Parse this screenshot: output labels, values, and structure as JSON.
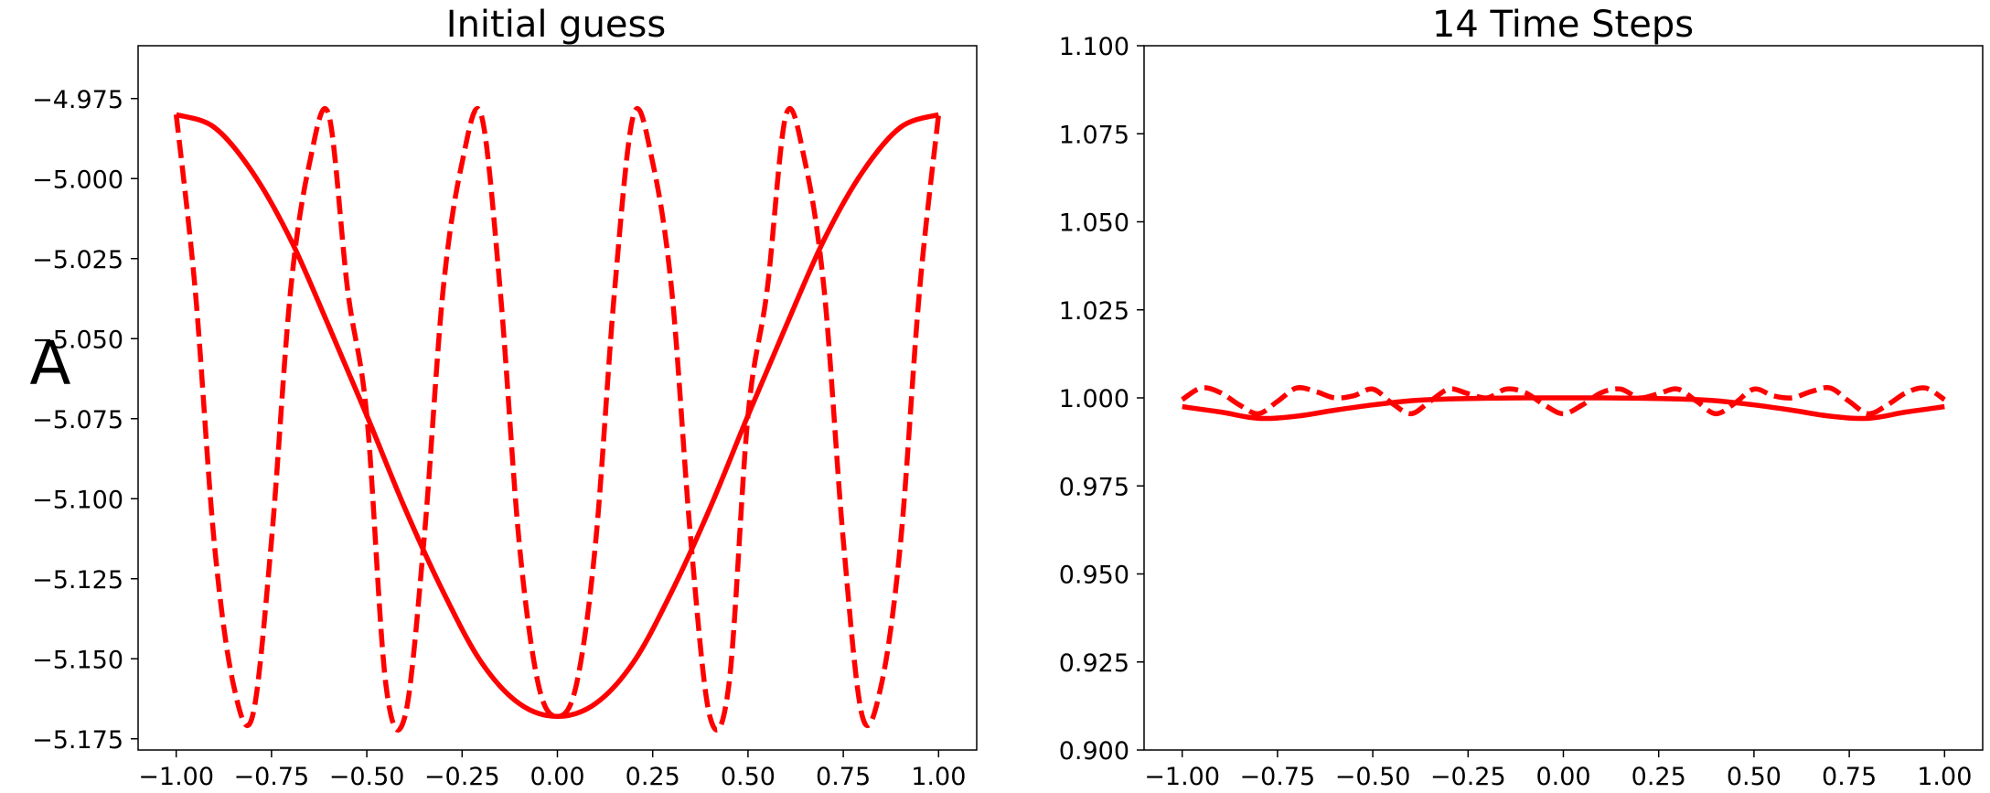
{
  "chart_data": [
    {
      "type": "line",
      "title": "Initial guess",
      "ylabel": "A",
      "xlabel": "",
      "xlim": [
        -1.1,
        1.1
      ],
      "ylim": [
        -5.1785,
        -4.9585
      ],
      "xticks": [
        -1.0,
        -0.75,
        -0.5,
        -0.25,
        0.0,
        0.25,
        0.5,
        0.75,
        1.0
      ],
      "xtick_labels": [
        "−1.00",
        "−0.75",
        "−0.50",
        "−0.25",
        "0.00",
        "0.25",
        "0.50",
        "0.75",
        "1.00"
      ],
      "yticks": [
        -4.975,
        -5.0,
        -5.025,
        -5.05,
        -5.075,
        -5.1,
        -5.125,
        -5.15,
        -5.175
      ],
      "ytick_labels": [
        "−4.975",
        "−5.000",
        "−5.025",
        "−5.050",
        "−5.075",
        "−5.100",
        "−5.125",
        "−5.150",
        "−5.175"
      ],
      "grid": false,
      "series": [
        {
          "style": "solid",
          "color": "#ff0000",
          "x": [
            -1.0,
            -0.9,
            -0.8,
            -0.7,
            -0.6,
            -0.5,
            -0.4,
            -0.3,
            -0.2,
            -0.1,
            0.0,
            0.1,
            0.2,
            0.3,
            0.4,
            0.5,
            0.6,
            0.7,
            0.8,
            0.9,
            1.0
          ],
          "y": [
            -4.98,
            -4.984,
            -4.998,
            -5.019,
            -5.046,
            -5.074,
            -5.103,
            -5.129,
            -5.151,
            -5.164,
            -5.168,
            -5.164,
            -5.151,
            -5.129,
            -5.103,
            -5.074,
            -5.046,
            -5.019,
            -4.998,
            -4.984,
            -4.98
          ]
        },
        {
          "style": "dashed",
          "color": "#ff0000",
          "x": [
            -1.0,
            -0.95,
            -0.9,
            -0.85,
            -0.8,
            -0.75,
            -0.7,
            -0.65,
            -0.6,
            -0.55,
            -0.5,
            -0.45,
            -0.4,
            -0.35,
            -0.3,
            -0.25,
            -0.2,
            -0.15,
            -0.1,
            -0.05,
            0.0,
            0.05,
            0.1,
            0.15,
            0.2,
            0.25,
            0.3,
            0.35,
            0.4,
            0.45,
            0.5,
            0.55,
            0.6,
            0.65,
            0.7,
            0.75,
            0.8,
            0.85,
            0.9,
            0.95,
            1.0
          ],
          "y": [
            -4.98,
            -5.035,
            -5.114,
            -5.158,
            -5.168,
            -5.113,
            -5.035,
            -4.995,
            -4.98,
            -5.035,
            -5.074,
            -5.158,
            -5.168,
            -5.113,
            -5.035,
            -4.995,
            -4.98,
            -5.035,
            -5.114,
            -5.158,
            -5.168,
            -5.158,
            -5.114,
            -5.035,
            -4.98,
            -4.995,
            -5.035,
            -5.113,
            -5.168,
            -5.158,
            -5.074,
            -5.035,
            -4.98,
            -4.995,
            -5.035,
            -5.113,
            -5.168,
            -5.158,
            -5.114,
            -5.035,
            -4.98
          ]
        }
      ]
    },
    {
      "type": "line",
      "title": "14 Time Steps",
      "ylabel": "",
      "xlabel": "",
      "xlim": [
        -1.1,
        1.1
      ],
      "ylim": [
        0.9,
        1.1
      ],
      "xticks": [
        -1.0,
        -0.75,
        -0.5,
        -0.25,
        0.0,
        0.25,
        0.5,
        0.75,
        1.0
      ],
      "xtick_labels": [
        "−1.00",
        "−0.75",
        "−0.50",
        "−0.25",
        "0.00",
        "0.25",
        "0.50",
        "0.75",
        "1.00"
      ],
      "yticks": [
        1.1,
        1.075,
        1.05,
        1.025,
        1.0,
        0.975,
        0.95,
        0.925,
        0.9
      ],
      "ytick_labels": [
        "1.100",
        "1.075",
        "1.050",
        "1.025",
        "1.000",
        "0.975",
        "0.950",
        "0.925",
        "0.900"
      ],
      "grid": false,
      "series": [
        {
          "style": "solid",
          "color": "#ff0000",
          "x": [
            -1.0,
            -0.9,
            -0.8,
            -0.7,
            -0.6,
            -0.5,
            -0.4,
            -0.3,
            -0.2,
            -0.1,
            0.0,
            0.1,
            0.2,
            0.3,
            0.4,
            0.5,
            0.6,
            0.7,
            0.8,
            0.9,
            1.0
          ],
          "y": [
            0.9975,
            0.996,
            0.9942,
            0.9948,
            0.9965,
            0.998,
            0.9992,
            0.9997,
            0.9999,
            1.0,
            1.0,
            1.0,
            0.9999,
            0.9997,
            0.9992,
            0.998,
            0.9965,
            0.9948,
            0.9942,
            0.996,
            0.9975
          ]
        },
        {
          "style": "dashed",
          "color": "#ff0000",
          "x": [
            -1.0,
            -0.95,
            -0.9,
            -0.85,
            -0.8,
            -0.75,
            -0.7,
            -0.65,
            -0.6,
            -0.55,
            -0.5,
            -0.45,
            -0.4,
            -0.35,
            -0.3,
            -0.25,
            -0.2,
            -0.15,
            -0.1,
            -0.05,
            0.0,
            0.05,
            0.1,
            0.15,
            0.2,
            0.25,
            0.3,
            0.35,
            0.4,
            0.45,
            0.5,
            0.55,
            0.6,
            0.65,
            0.7,
            0.75,
            0.8,
            0.85,
            0.9,
            0.95,
            1.0
          ],
          "y": [
            0.9995,
            1.0028,
            1.0015,
            0.998,
            0.9955,
            0.999,
            1.0028,
            1.0018,
            1.0,
            1.0006,
            1.0025,
            0.9985,
            0.9955,
            0.999,
            1.0025,
            1.0012,
            1.0,
            1.0025,
            1.0015,
            0.998,
            0.9955,
            0.998,
            1.0015,
            1.0025,
            1.0,
            1.0012,
            1.0025,
            0.999,
            0.9955,
            0.9985,
            1.0025,
            1.0006,
            1.0,
            1.0018,
            1.0028,
            0.999,
            0.9955,
            0.998,
            1.0015,
            1.0028,
            0.9995
          ]
        }
      ]
    }
  ]
}
